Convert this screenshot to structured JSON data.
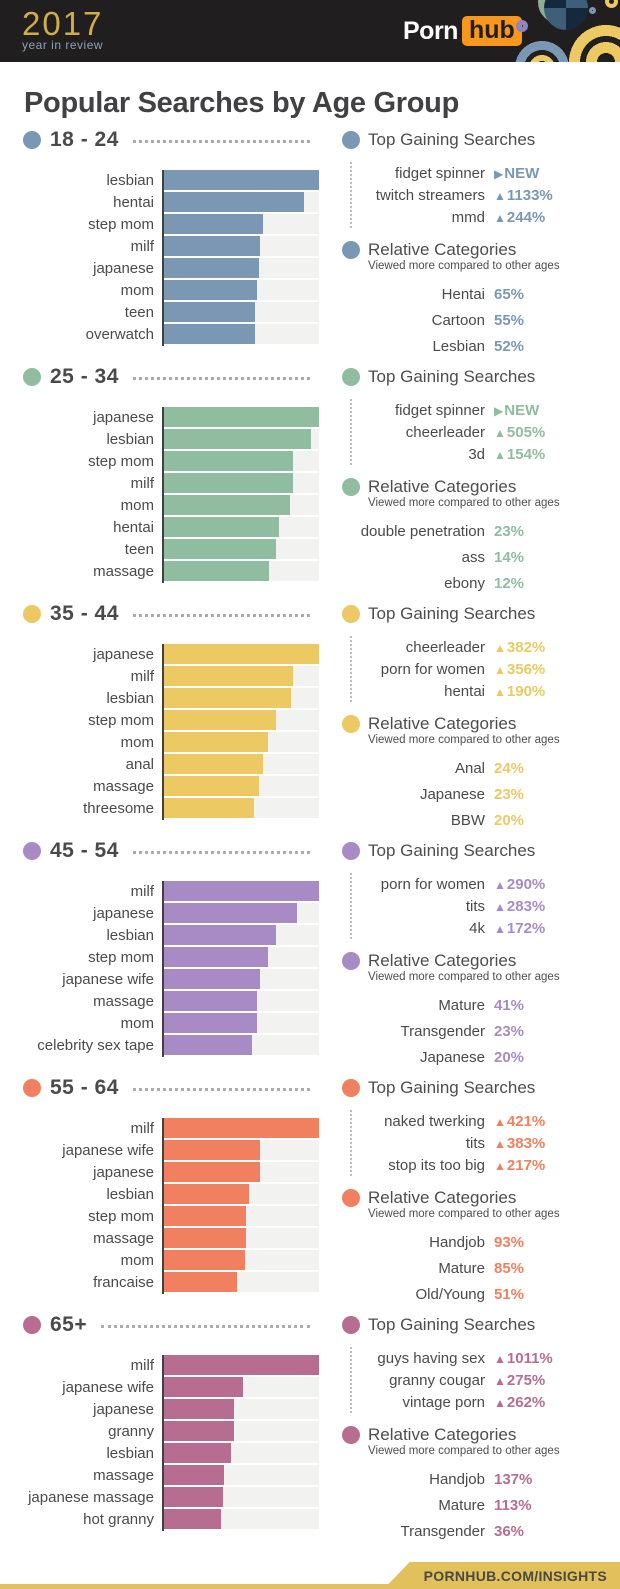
{
  "header": {
    "year": "2017",
    "tagline": "year in review",
    "brand": {
      "porn": "Porn",
      "hub": "hub"
    }
  },
  "page_title": "Popular Searches by Age Group",
  "section_labels": {
    "gaining_title": "Top Gaining Searches",
    "categories_title": "Relative Categories",
    "categories_subtitle": "Viewed more compared to other ages"
  },
  "footer": {
    "url": "PORNHUB.COM/INSIGHTS"
  },
  "colors": {
    "age_18_24": "#7A98B4",
    "age_25_34": "#90BCA0",
    "age_35_44": "#ECC963",
    "age_45_54": "#A88BC5",
    "age_55_64": "#F0805F",
    "age_65_plus": "#B76D90",
    "header_bg": "#211E1F",
    "hub_orange": "#F7971D",
    "footer_gold": "#E2C05C",
    "bar_track": "#F2F2F1"
  },
  "chart_data": [
    {
      "type": "bar",
      "age_group": "18 - 24",
      "color": "#7A98B4",
      "orientation": "horizontal",
      "unit": "relative search volume, % of top term",
      "categories": [
        "lesbian",
        "hentai",
        "step mom",
        "milf",
        "japanese",
        "mom",
        "teen",
        "overwatch"
      ],
      "values": [
        100,
        90,
        64,
        62,
        61,
        60,
        59,
        59
      ]
    },
    {
      "type": "bar",
      "age_group": "25 - 34",
      "color": "#90BCA0",
      "orientation": "horizontal",
      "unit": "relative search volume, % of top term",
      "categories": [
        "japanese",
        "lesbian",
        "step mom",
        "milf",
        "mom",
        "hentai",
        "teen",
        "massage"
      ],
      "values": [
        100,
        95,
        83,
        83,
        81,
        74,
        72,
        68
      ]
    },
    {
      "type": "bar",
      "age_group": "35 - 44",
      "color": "#ECC963",
      "orientation": "horizontal",
      "unit": "relative search volume, % of top term",
      "categories": [
        "japanese",
        "milf",
        "lesbian",
        "step mom",
        "mom",
        "anal",
        "massage",
        "threesome"
      ],
      "values": [
        100,
        83,
        82,
        72,
        67,
        64,
        61,
        58
      ]
    },
    {
      "type": "bar",
      "age_group": "45 - 54",
      "color": "#A88BC5",
      "orientation": "horizontal",
      "unit": "relative search volume, % of top term",
      "categories": [
        "milf",
        "japanese",
        "lesbian",
        "step mom",
        "japanese wife",
        "massage",
        "mom",
        "celebrity sex tape"
      ],
      "values": [
        100,
        86,
        72,
        67,
        62,
        60,
        60,
        57
      ]
    },
    {
      "type": "bar",
      "age_group": "55 - 64",
      "color": "#F0805F",
      "orientation": "horizontal",
      "unit": "relative search volume, % of top term",
      "categories": [
        "milf",
        "japanese wife",
        "japanese",
        "lesbian",
        "step mom",
        "massage",
        "mom",
        "francaise"
      ],
      "values": [
        100,
        62,
        62,
        55,
        53,
        53,
        52,
        47
      ]
    },
    {
      "type": "bar",
      "age_group": "65+",
      "color": "#B76D90",
      "orientation": "horizontal",
      "unit": "relative search volume, % of top term",
      "categories": [
        "milf",
        "japanese wife",
        "japanese",
        "granny",
        "lesbian",
        "massage",
        "japanese massage",
        "hot granny"
      ],
      "values": [
        100,
        51,
        45,
        45,
        43,
        39,
        38,
        37
      ]
    }
  ],
  "sections": [
    {
      "age": "18 - 24",
      "color": "#7A98B4",
      "chart_index": 0,
      "gaining": [
        {
          "term": "fidget spinner",
          "marker": "▶",
          "value": "NEW"
        },
        {
          "term": "twitch streamers",
          "marker": "▲",
          "value": "1133%"
        },
        {
          "term": "mmd",
          "marker": "▲",
          "value": "244%"
        }
      ],
      "categories": [
        {
          "name": "Hentai",
          "value": "65%"
        },
        {
          "name": "Cartoon",
          "value": "55%"
        },
        {
          "name": "Lesbian",
          "value": "52%"
        }
      ]
    },
    {
      "age": "25 - 34",
      "color": "#90BCA0",
      "chart_index": 1,
      "gaining": [
        {
          "term": "fidget spinner",
          "marker": "▶",
          "value": "NEW"
        },
        {
          "term": "cheerleader",
          "marker": "▲",
          "value": "505%"
        },
        {
          "term": "3d",
          "marker": "▲",
          "value": "154%"
        }
      ],
      "categories": [
        {
          "name": "double penetration",
          "value": "23%"
        },
        {
          "name": "ass",
          "value": "14%"
        },
        {
          "name": "ebony",
          "value": "12%"
        }
      ]
    },
    {
      "age": "35 - 44",
      "color": "#ECC963",
      "chart_index": 2,
      "gaining": [
        {
          "term": "cheerleader",
          "marker": "▲",
          "value": "382%"
        },
        {
          "term": "porn for women",
          "marker": "▲",
          "value": "356%"
        },
        {
          "term": "hentai",
          "marker": "▲",
          "value": "190%"
        }
      ],
      "categories": [
        {
          "name": "Anal",
          "value": "24%"
        },
        {
          "name": "Japanese",
          "value": "23%"
        },
        {
          "name": "BBW",
          "value": "20%"
        }
      ]
    },
    {
      "age": "45 - 54",
      "color": "#A88BC5",
      "chart_index": 3,
      "gaining": [
        {
          "term": "porn for women",
          "marker": "▲",
          "value": "290%"
        },
        {
          "term": "tits",
          "marker": "▲",
          "value": "283%"
        },
        {
          "term": "4k",
          "marker": "▲",
          "value": "172%"
        }
      ],
      "categories": [
        {
          "name": "Mature",
          "value": "41%"
        },
        {
          "name": "Transgender",
          "value": "23%"
        },
        {
          "name": "Japanese",
          "value": "20%"
        }
      ]
    },
    {
      "age": "55 - 64",
      "color": "#F0805F",
      "chart_index": 4,
      "gaining": [
        {
          "term": "naked twerking",
          "marker": "▲",
          "value": "421%"
        },
        {
          "term": "tits",
          "marker": "▲",
          "value": "383%"
        },
        {
          "term": "stop its too big",
          "marker": "▲",
          "value": "217%"
        }
      ],
      "categories": [
        {
          "name": "Handjob",
          "value": "93%"
        },
        {
          "name": "Mature",
          "value": "85%"
        },
        {
          "name": "Old/Young",
          "value": "51%"
        }
      ]
    },
    {
      "age": "65+",
      "color": "#B76D90",
      "chart_index": 5,
      "gaining": [
        {
          "term": "guys having sex",
          "marker": "▲",
          "value": "1011%"
        },
        {
          "term": "granny cougar",
          "marker": "▲",
          "value": "275%"
        },
        {
          "term": "vintage porn",
          "marker": "▲",
          "value": "262%"
        }
      ],
      "categories": [
        {
          "name": "Handjob",
          "value": "137%"
        },
        {
          "name": "Mature",
          "value": "113%"
        },
        {
          "name": "Transgender",
          "value": "36%"
        }
      ]
    }
  ]
}
